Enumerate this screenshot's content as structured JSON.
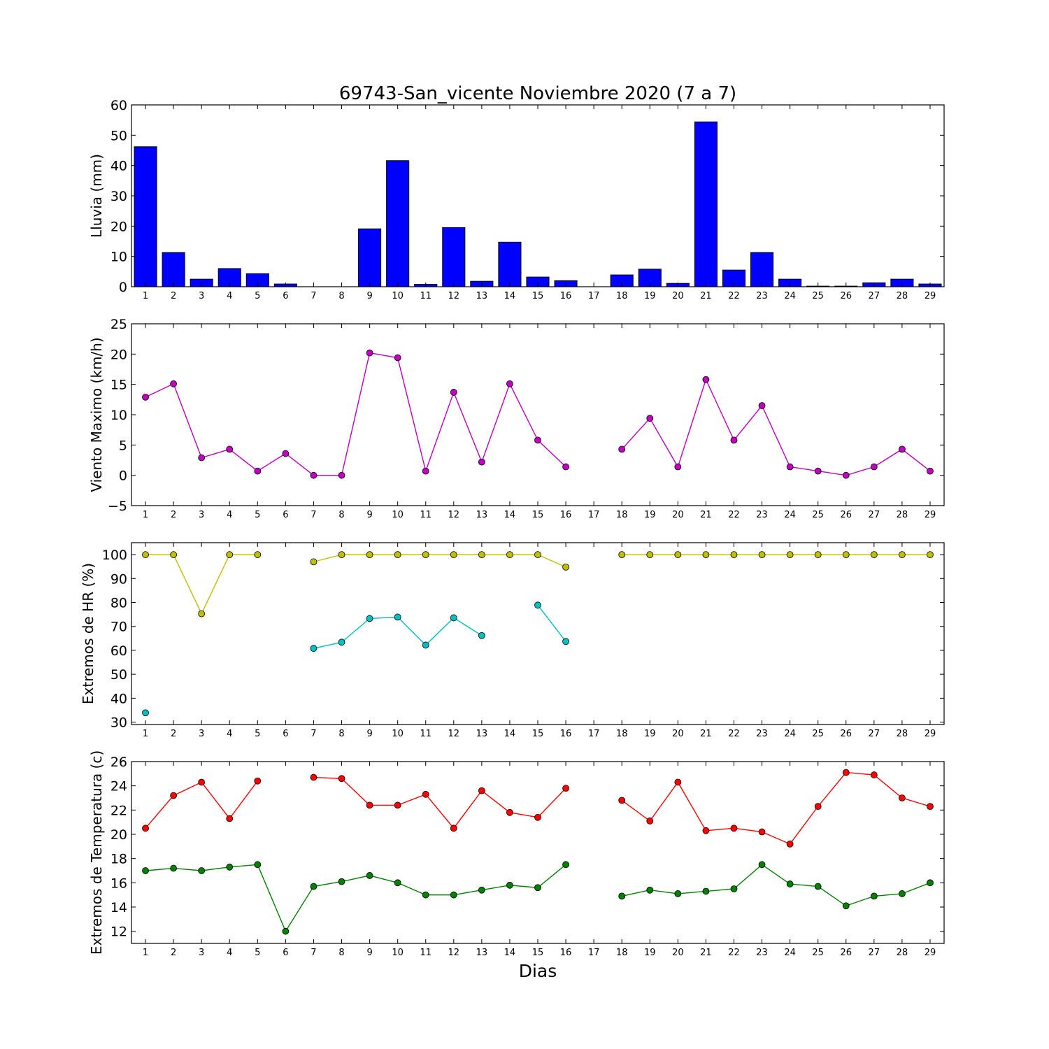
{
  "figure": {
    "title": "69743-San_vicente Noviembre 2020  (7 a 7)",
    "xlabel": "Dias"
  },
  "chart_data": [
    {
      "type": "bar",
      "id": "lluvia",
      "ylabel": "Lluvia (mm)",
      "ylim": [
        0,
        60
      ],
      "yticks": [
        0,
        10,
        20,
        30,
        40,
        50,
        60
      ],
      "categories": [
        "1",
        "2",
        "3",
        "4",
        "5",
        "6",
        "7",
        "8",
        "9",
        "10",
        "11",
        "12",
        "13",
        "14",
        "15",
        "16",
        "17",
        "18",
        "19",
        "20",
        "21",
        "22",
        "23",
        "24",
        "25",
        "26",
        "27",
        "28",
        "29"
      ],
      "values": [
        46.2,
        11.3,
        2.5,
        6.0,
        4.3,
        0.9,
        0,
        0,
        19.1,
        41.6,
        0.8,
        19.5,
        1.8,
        14.7,
        3.2,
        2.0,
        null,
        3.9,
        5.8,
        1.1,
        54.4,
        5.5,
        11.3,
        2.5,
        0.2,
        0.2,
        1.3,
        2.5,
        0.9
      ],
      "color": "#0000ff",
      "grid": false
    },
    {
      "type": "line",
      "id": "viento",
      "ylabel": "Viento Maximo (km/h)",
      "ylim": [
        -5,
        25
      ],
      "yticks": [
        -5,
        0,
        5,
        10,
        15,
        20,
        25
      ],
      "x": [
        1,
        2,
        3,
        4,
        5,
        6,
        7,
        8,
        9,
        10,
        11,
        12,
        13,
        14,
        15,
        16,
        17,
        18,
        19,
        20,
        21,
        22,
        23,
        24,
        25,
        26,
        27,
        28,
        29
      ],
      "series": [
        {
          "color": "#bf00bf",
          "values": [
            12.9,
            15.1,
            2.9,
            4.3,
            0.7,
            3.6,
            0,
            0,
            20.2,
            19.4,
            0.7,
            13.7,
            2.2,
            15.1,
            5.8,
            1.4,
            null,
            4.3,
            9.4,
            1.4,
            15.8,
            5.8,
            11.5,
            1.4,
            0.7,
            0,
            1.4,
            4.3,
            0.7
          ]
        }
      ],
      "grid": false
    },
    {
      "type": "line",
      "id": "hr",
      "ylabel": "Extremos de HR (%)",
      "ylim": [
        29,
        105
      ],
      "yticks": [
        30,
        40,
        50,
        60,
        70,
        80,
        90,
        100
      ],
      "x": [
        1,
        2,
        3,
        4,
        5,
        6,
        7,
        8,
        9,
        10,
        11,
        12,
        13,
        14,
        15,
        16,
        17,
        18,
        19,
        20,
        21,
        22,
        23,
        24,
        25,
        26,
        27,
        28,
        29
      ],
      "series": [
        {
          "color": "#bfbf00",
          "values": [
            100,
            100,
            75.3,
            100,
            100,
            null,
            97,
            100,
            100,
            100,
            100,
            100,
            100,
            100,
            100,
            94.8,
            null,
            100,
            100,
            100,
            100,
            100,
            100,
            100,
            100,
            100,
            100,
            100,
            100
          ]
        },
        {
          "color": "#00bfbf",
          "values": [
            33.9,
            null,
            null,
            null,
            null,
            null,
            60.8,
            63.4,
            73.3,
            73.9,
            62.2,
            73.6,
            66.2,
            null,
            78.9,
            63.7,
            null,
            null,
            null,
            null,
            null,
            null,
            null,
            null,
            null,
            null,
            null,
            null,
            null
          ]
        }
      ],
      "grid": false
    },
    {
      "type": "line",
      "id": "temperatura",
      "ylabel": "Extremos de Temperatura (c)",
      "ylim": [
        11,
        26
      ],
      "yticks": [
        12,
        14,
        16,
        18,
        20,
        22,
        24,
        26
      ],
      "x": [
        1,
        2,
        3,
        4,
        5,
        6,
        7,
        8,
        9,
        10,
        11,
        12,
        13,
        14,
        15,
        16,
        17,
        18,
        19,
        20,
        21,
        22,
        23,
        24,
        25,
        26,
        27,
        28,
        29
      ],
      "series": [
        {
          "color": "#ff0000",
          "values": [
            20.5,
            23.2,
            24.3,
            21.3,
            24.4,
            null,
            24.7,
            24.6,
            22.4,
            22.4,
            23.3,
            20.5,
            23.6,
            21.8,
            21.4,
            23.8,
            null,
            22.8,
            21.1,
            24.3,
            20.3,
            20.5,
            20.2,
            19.2,
            22.3,
            25.1,
            24.9,
            23.0,
            22.3
          ]
        },
        {
          "color": "#008000",
          "values": [
            17.0,
            17.2,
            17.0,
            17.3,
            17.5,
            12.0,
            15.7,
            16.1,
            16.6,
            16.0,
            15.0,
            15.0,
            15.4,
            15.8,
            15.6,
            17.5,
            null,
            14.9,
            15.4,
            15.1,
            15.3,
            15.5,
            17.5,
            15.9,
            15.7,
            14.1,
            14.9,
            15.1,
            16.0
          ]
        }
      ],
      "grid": false
    }
  ]
}
